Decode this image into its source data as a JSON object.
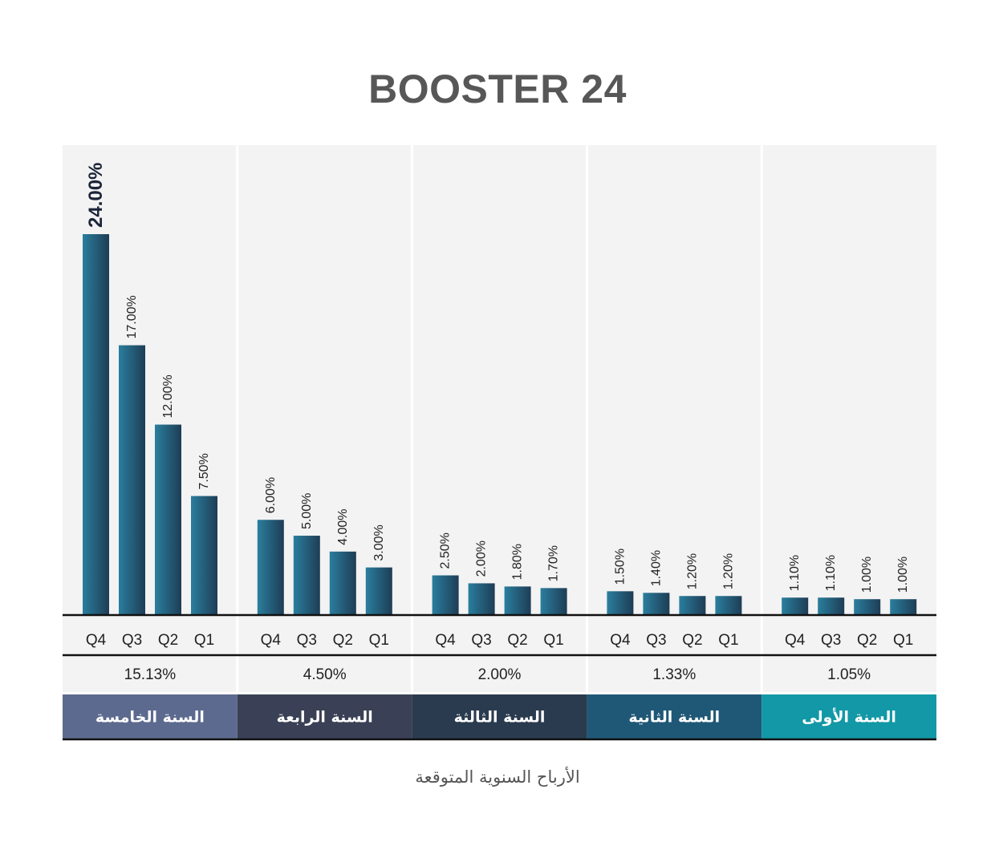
{
  "chart_data": {
    "type": "bar",
    "title": "BOOSTER 24",
    "footer_label": "الأرباح السنوية المتوقعة",
    "categories": [
      "Q4",
      "Q3",
      "Q2",
      "Q1"
    ],
    "ylim": [
      0,
      24
    ],
    "groups": [
      {
        "year_label": "السنة الخامسة",
        "annual_value": "15.13%",
        "color": "#5d6a8f",
        "values": [
          24.0,
          17.0,
          12.0,
          7.5
        ],
        "value_labels": [
          "24.00%",
          "17.00%",
          "12.00%",
          "7.50%"
        ],
        "highlight_index": 0
      },
      {
        "year_label": "السنة الرابعة",
        "annual_value": "4.50%",
        "color": "#3a4156",
        "values": [
          6.0,
          5.0,
          4.0,
          3.0
        ],
        "value_labels": [
          "6.00%",
          "5.00%",
          "4.00%",
          "3.00%"
        ]
      },
      {
        "year_label": "السنة الثالثة",
        "annual_value": "2.00%",
        "color": "#2b3b4f",
        "values": [
          2.5,
          2.0,
          1.8,
          1.7
        ],
        "value_labels": [
          "2.50%",
          "2.00%",
          "1.80%",
          "1.70%"
        ]
      },
      {
        "year_label": "السنة الثانية",
        "annual_value": "1.33%",
        "color": "#1f5876",
        "values": [
          1.5,
          1.4,
          1.2,
          1.2
        ],
        "value_labels": [
          "1.50%",
          "1.40%",
          "1.20%",
          "1.20%"
        ]
      },
      {
        "year_label": "السنة الأولى",
        "annual_value": "1.05%",
        "color": "#1298a6",
        "values": [
          1.1,
          1.1,
          1.0,
          1.0
        ],
        "value_labels": [
          "1.10%",
          "1.10%",
          "1.00%",
          "1.00%"
        ]
      }
    ],
    "colors": {
      "bar_dark": "#1e3d55",
      "bar_light": "#2a7e9e",
      "panel_bg": "#f3f3f3",
      "axis": "#111111",
      "text": "#222222",
      "highlight_text": "#1b2438"
    },
    "grid": false,
    "legend": "none"
  }
}
